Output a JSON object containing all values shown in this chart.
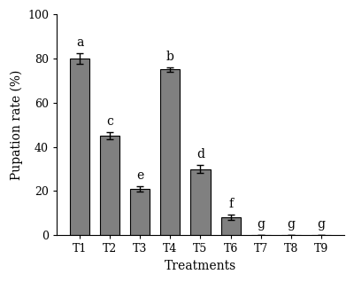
{
  "categories": [
    "T1",
    "T2",
    "T3",
    "T4",
    "T5",
    "T6",
    "T7",
    "T8",
    "T9"
  ],
  "values": [
    80,
    45,
    21,
    75,
    30,
    8,
    0,
    0,
    0
  ],
  "errors": [
    2.5,
    1.5,
    1.2,
    1.0,
    1.8,
    1.2,
    0,
    0,
    0
  ],
  "letters": [
    "a",
    "c",
    "e",
    "b",
    "d",
    "f",
    "g",
    "g",
    "g"
  ],
  "bar_color": "#808080",
  "bar_edgecolor": "#000000",
  "ylabel": "Pupation rate (%)",
  "xlabel": "Treatments",
  "ylim": [
    0,
    100
  ],
  "yticks": [
    0,
    20,
    40,
    60,
    80,
    100
  ],
  "title_fontsize": 10,
  "label_fontsize": 10,
  "tick_fontsize": 9,
  "letter_fontsize": 10,
  "bar_width": 0.65,
  "background_color": "#ffffff"
}
